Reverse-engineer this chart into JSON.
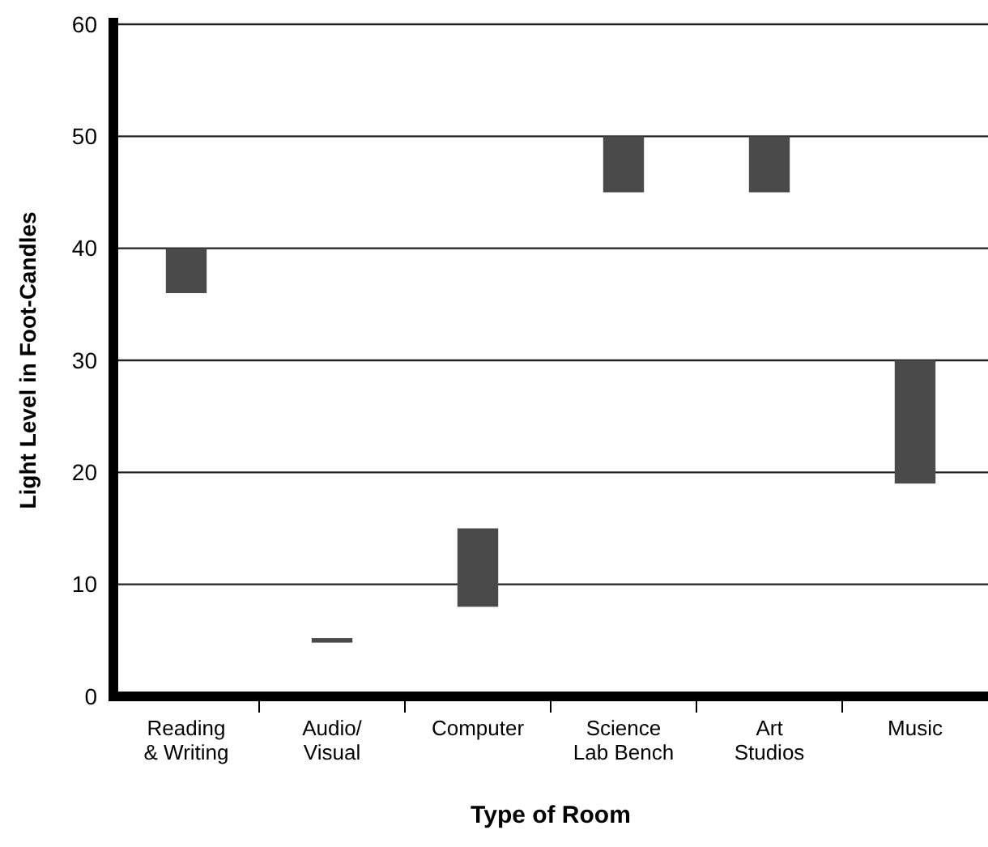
{
  "chart_data": {
    "type": "bar",
    "xlabel": "Type of Room",
    "ylabel": "Light Level in Foot-Candles",
    "categories": [
      "Reading\n& Writing",
      "Audio/\nVisual",
      "Computer",
      "Science\nLab Bench",
      "Art\nStudios",
      "Music"
    ],
    "base": [
      36,
      4.8,
      8,
      45,
      45,
      19
    ],
    "values": [
      4,
      0.4,
      7,
      5,
      5,
      11
    ],
    "color": "#4a4a4a",
    "ylim": [
      0,
      60
    ],
    "yticks": [
      0,
      10,
      20,
      30,
      40,
      50,
      60
    ],
    "grid": "y"
  }
}
